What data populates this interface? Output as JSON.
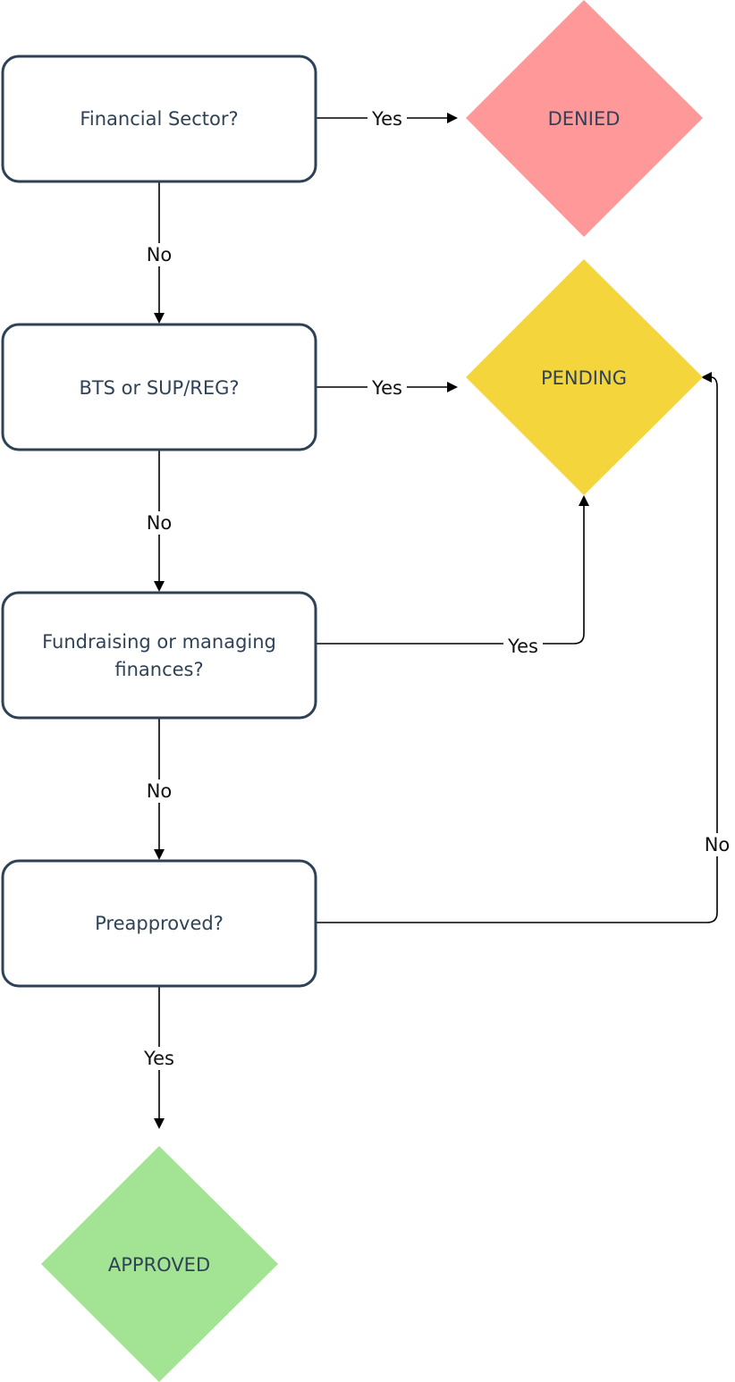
{
  "diagram": {
    "type": "flowchart",
    "decisions": {
      "financial_sector": "Financial Sector?",
      "bts_sup_reg": "BTS or SUP/REG?",
      "fundraising_line1": "Fundraising or managing",
      "fundraising_line2": "finances?",
      "preapproved": "Preapproved?"
    },
    "outcomes": {
      "denied": "DENIED",
      "pending": "PENDING",
      "approved": "APPROVED"
    },
    "edge_labels": {
      "financial_yes": "Yes",
      "financial_no": "No",
      "bts_yes": "Yes",
      "bts_no": "No",
      "fundraising_yes": "Yes",
      "fundraising_no": "No",
      "preapproved_yes": "Yes",
      "preapproved_no": "No"
    },
    "colors": {
      "box_stroke": "#2e4257",
      "text": "#2f4256",
      "denied": "#ff9999",
      "pending": "#f4d63c",
      "approved": "#a3e494",
      "edge": "#000000"
    }
  }
}
